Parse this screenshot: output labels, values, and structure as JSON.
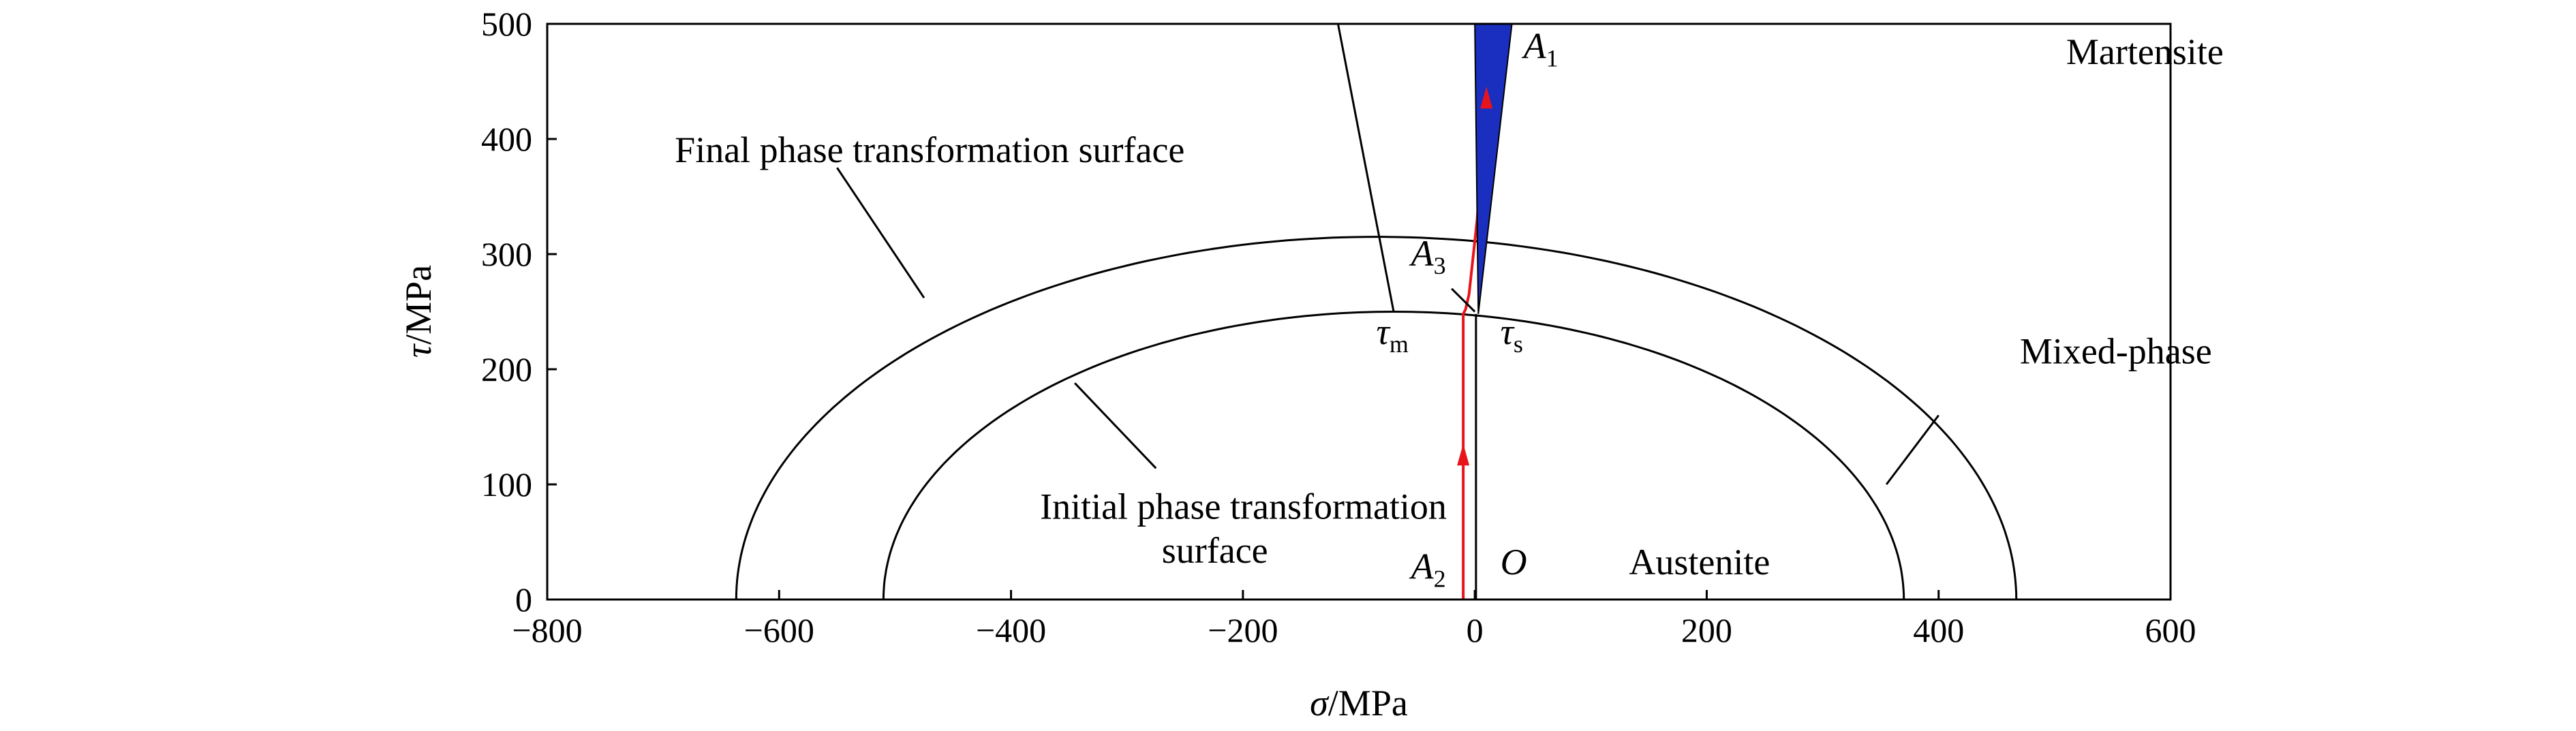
{
  "chart_data": {
    "type": "line",
    "xlabel": "σ/MPa",
    "xlabel_symbol": "σ",
    "xlabel_unit": "/MPa",
    "ylabel": "τ/MPa",
    "ylabel_symbol": "τ",
    "ylabel_unit": "/MPa",
    "xlim": [
      -800,
      600
    ],
    "ylim": [
      0,
      500
    ],
    "xticks": [
      -800,
      -600,
      -400,
      -200,
      0,
      200,
      400,
      600
    ],
    "xtick_labels": [
      "−800",
      "−600",
      "−400",
      "−200",
      "0",
      "200",
      "400",
      "600"
    ],
    "yticks": [
      0,
      100,
      200,
      300,
      400,
      500
    ],
    "ytick_labels": [
      "0",
      "100",
      "200",
      "300",
      "400",
      "500"
    ],
    "grid": false,
    "series": [
      {
        "kind": "ellipse",
        "center_x": -70,
        "radius_x": 440,
        "radius_y": 250,
        "color": "#000000"
      },
      {
        "kind": "ellipse",
        "center_x": -85,
        "radius_x": 552,
        "radius_y": 315,
        "color": "#000000"
      },
      {
        "kind": "path",
        "color": "#e8141b",
        "x": [
          -10,
          -10,
          -8,
          -5,
          2,
          8,
          12
        ],
        "y": [
          0,
          248,
          252,
          265,
          330,
          410,
          480
        ]
      },
      {
        "kind": "vertical-line",
        "color": "#000000",
        "x": [
          1,
          1
        ],
        "y": [
          0,
          248
        ]
      },
      {
        "kind": "filled-region",
        "color": "#1a2fc0",
        "x": [
          0,
          32,
          3
        ],
        "y": [
          500,
          500,
          248
        ]
      }
    ],
    "arrows": [
      {
        "x": -10,
        "y": 120
      },
      {
        "x": 10,
        "y": 430
      }
    ],
    "annotations": {
      "final_surface": {
        "text": "Final phase transformation surface",
        "x": -690,
        "y": 380
      },
      "initial_surface_line1": {
        "text": "Initial phase transformation",
        "x": -375,
        "y": 70
      },
      "initial_surface_line2": {
        "text": "surface",
        "x": -270,
        "y": 32
      },
      "mixed_phase": {
        "text": "Mixed-phase",
        "x": 470,
        "y": 205
      },
      "martensite": {
        "text": "Martensite",
        "x": 510,
        "y": 465
      },
      "austenite": {
        "text": "Austenite",
        "x": 133,
        "y": 22
      },
      "origin": {
        "text": "O",
        "x": 22,
        "y": 22
      },
      "A1": {
        "sym": "A",
        "sub": "1",
        "x": 42,
        "y": 470
      },
      "A2": {
        "sym": "A",
        "sub": "2",
        "x": -55,
        "y": 18
      },
      "A3": {
        "sym": "A",
        "sub": "3",
        "x": -55,
        "y": 290
      },
      "tau_m": {
        "sym": "τ",
        "sub": "m",
        "x": -85,
        "y": 222
      },
      "tau_s": {
        "sym": "τ",
        "sub": "s",
        "x": 22,
        "y": 222
      }
    },
    "leaders": [
      {
        "x": [
          -550,
          -475
        ],
        "y": [
          375,
          262
        ]
      },
      {
        "x": -1,
        "y": 0
      },
      {
        "x": [
          -345,
          -275
        ],
        "y": [
          188,
          114
        ]
      },
      {
        "x": [
          -118,
          -70
        ],
        "y": [
          500,
          250
        ]
      },
      {
        "x": [
          400,
          355
        ],
        "y": [
          160,
          100
        ]
      },
      {
        "x": [
          -20,
          0
        ],
        "y": [
          270,
          250
        ]
      }
    ]
  }
}
